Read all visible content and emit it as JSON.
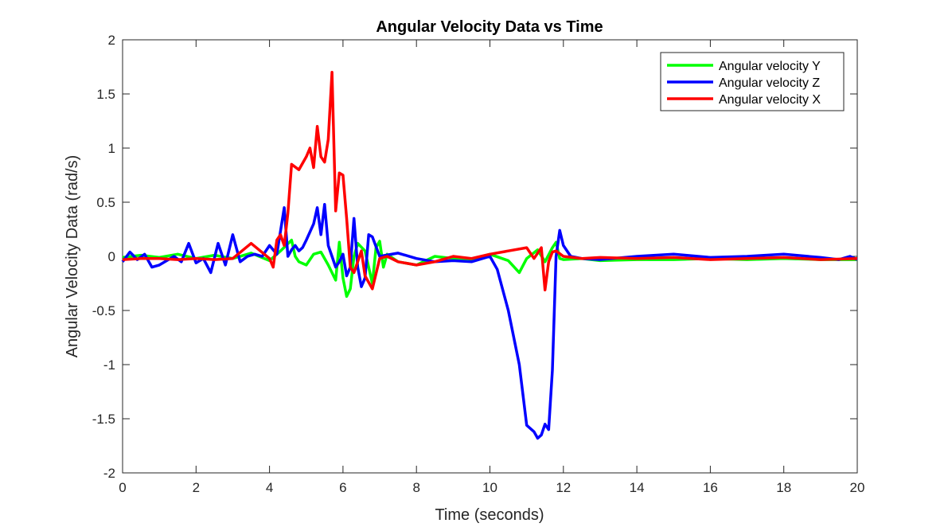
{
  "chart_data": {
    "type": "line",
    "title": "Angular Velocity Data vs Time",
    "xlabel": "Time (seconds)",
    "ylabel": "Angular Velocity Data (rad/s)",
    "xlim": [
      0,
      20
    ],
    "ylim": [
      -2,
      2
    ],
    "xticks": [
      "0",
      "2",
      "4",
      "6",
      "8",
      "10",
      "12",
      "14",
      "16",
      "18",
      "20"
    ],
    "yticks": [
      "-2",
      "-1.5",
      "-1",
      "-0.5",
      "0",
      "0.5",
      "1",
      "1.5",
      "2"
    ],
    "grid": false,
    "legend_position": "top-right",
    "series": [
      {
        "name": "Angular velocity Y",
        "color": "#00ff00",
        "x": [
          0,
          0.5,
          1,
          1.5,
          2,
          2.5,
          3,
          3.5,
          4,
          4.3,
          4.6,
          4.7,
          4.8,
          5.0,
          5.2,
          5.4,
          5.6,
          5.8,
          5.9,
          6.0,
          6.1,
          6.2,
          6.3,
          6.4,
          6.6,
          6.8,
          6.9,
          7.0,
          7.1,
          7.2,
          7.5,
          8.0,
          8.5,
          9.0,
          9.5,
          10.0,
          10.5,
          10.8,
          11.0,
          11.3,
          11.5,
          11.7,
          11.8,
          11.9,
          12.0,
          12.5,
          13,
          14,
          15,
          16,
          17,
          18,
          19,
          20
        ],
        "y": [
          -0.01,
          0.01,
          -0.01,
          0.02,
          -0.02,
          0.01,
          -0.02,
          0.03,
          -0.04,
          0.05,
          0.15,
          0.0,
          -0.05,
          -0.08,
          0.02,
          0.04,
          -0.08,
          -0.22,
          0.13,
          -0.2,
          -0.37,
          -0.3,
          0.0,
          0.12,
          0.05,
          -0.25,
          0.08,
          0.14,
          -0.1,
          0.02,
          -0.05,
          -0.08,
          0.0,
          -0.02,
          -0.03,
          0.02,
          -0.04,
          -0.15,
          -0.02,
          0.06,
          -0.05,
          0.08,
          0.13,
          -0.02,
          -0.03,
          -0.02,
          -0.04,
          -0.03,
          -0.03,
          -0.02,
          -0.03,
          -0.02,
          -0.03,
          -0.03
        ]
      },
      {
        "name": "Angular velocity Z",
        "color": "#0000ff",
        "x": [
          0,
          0.2,
          0.4,
          0.6,
          0.8,
          1.0,
          1.4,
          1.6,
          1.8,
          2.0,
          2.2,
          2.4,
          2.6,
          2.8,
          3.0,
          3.2,
          3.4,
          3.6,
          3.8,
          4.0,
          4.2,
          4.4,
          4.5,
          4.6,
          4.7,
          4.8,
          4.9,
          5.0,
          5.2,
          5.3,
          5.4,
          5.5,
          5.6,
          5.7,
          5.8,
          5.9,
          6.0,
          6.1,
          6.2,
          6.3,
          6.4,
          6.5,
          6.6,
          6.7,
          6.8,
          7.0,
          7.5,
          8.0,
          8.5,
          9.0,
          9.5,
          10.0,
          10.2,
          10.5,
          10.8,
          11.0,
          11.2,
          11.3,
          11.4,
          11.5,
          11.6,
          11.7,
          11.8,
          11.9,
          12.0,
          12.2,
          12.5,
          13,
          14,
          15,
          16,
          17,
          18,
          19,
          19.5,
          19.8,
          20
        ],
        "y": [
          -0.05,
          0.04,
          -0.03,
          0.02,
          -0.1,
          -0.08,
          0.0,
          -0.05,
          0.12,
          -0.06,
          -0.02,
          -0.15,
          0.12,
          -0.08,
          0.2,
          -0.05,
          0.0,
          0.02,
          0.0,
          0.1,
          0.02,
          0.45,
          0.0,
          0.06,
          0.1,
          0.05,
          0.08,
          0.15,
          0.3,
          0.45,
          0.2,
          0.48,
          0.1,
          0.0,
          -0.1,
          -0.05,
          0.02,
          -0.18,
          -0.1,
          0.35,
          -0.1,
          -0.28,
          -0.2,
          0.2,
          0.18,
          0.0,
          0.03,
          -0.02,
          -0.05,
          -0.04,
          -0.05,
          0.0,
          -0.12,
          -0.5,
          -1.0,
          -1.56,
          -1.62,
          -1.68,
          -1.65,
          -1.55,
          -1.6,
          -1.05,
          0.0,
          0.24,
          0.1,
          0.0,
          -0.02,
          -0.03,
          0.0,
          0.02,
          -0.01,
          0.0,
          0.02,
          -0.01,
          -0.03,
          0.0,
          -0.03
        ]
      },
      {
        "name": "Angular velocity X",
        "color": "#ff0000",
        "x": [
          0,
          0.5,
          1,
          1.5,
          2,
          2.5,
          3,
          3.5,
          4.0,
          4.1,
          4.2,
          4.3,
          4.4,
          4.5,
          4.6,
          4.8,
          5.0,
          5.1,
          5.2,
          5.3,
          5.4,
          5.5,
          5.6,
          5.7,
          5.8,
          5.9,
          6.0,
          6.1,
          6.2,
          6.3,
          6.4,
          6.5,
          6.6,
          6.8,
          7.0,
          7.2,
          7.5,
          8.0,
          8.5,
          9.0,
          9.5,
          10.0,
          10.5,
          11.0,
          11.2,
          11.4,
          11.5,
          11.6,
          11.7,
          11.8,
          12.0,
          12.5,
          13,
          14,
          15,
          16,
          17,
          18,
          19,
          20
        ],
        "y": [
          -0.03,
          -0.02,
          -0.02,
          -0.03,
          -0.02,
          -0.03,
          -0.02,
          0.12,
          -0.02,
          -0.1,
          0.15,
          0.2,
          0.1,
          0.4,
          0.85,
          0.8,
          0.92,
          1.0,
          0.82,
          1.2,
          0.92,
          0.87,
          1.08,
          1.7,
          0.42,
          0.77,
          0.75,
          0.35,
          -0.1,
          -0.15,
          -0.05,
          0.05,
          -0.18,
          -0.3,
          -0.02,
          0.0,
          -0.05,
          -0.08,
          -0.05,
          0.0,
          -0.02,
          0.02,
          0.05,
          0.08,
          -0.02,
          0.08,
          -0.31,
          -0.05,
          0.04,
          0.05,
          0.0,
          -0.02,
          -0.01,
          -0.02,
          -0.01,
          -0.03,
          -0.02,
          -0.01,
          -0.03,
          -0.02
        ]
      }
    ]
  }
}
